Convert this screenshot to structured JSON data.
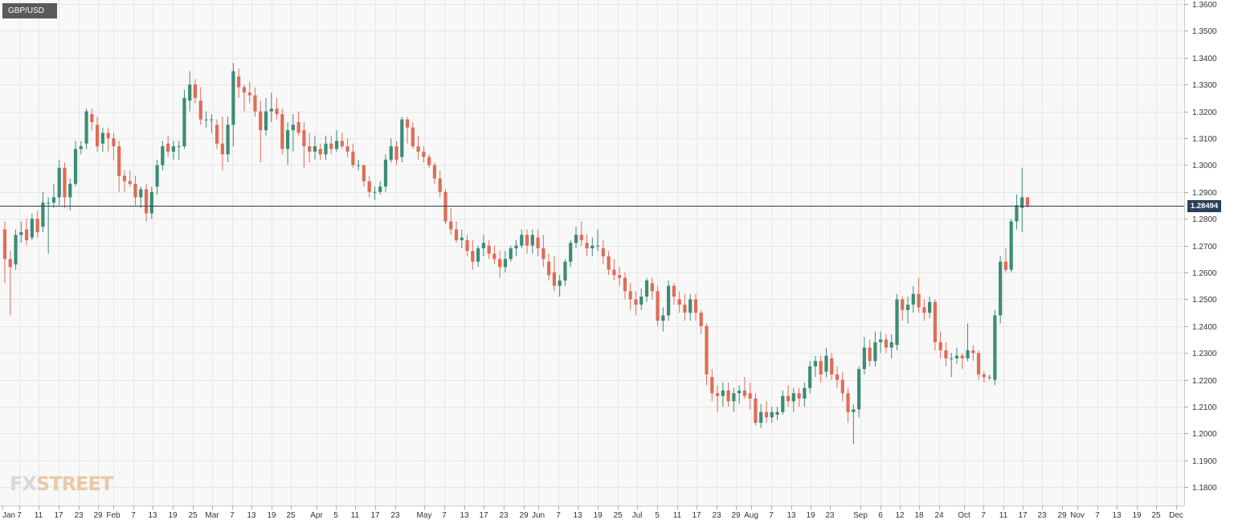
{
  "symbol": "GBP/USD",
  "logo": {
    "part1": "FX",
    "part2": "STREET"
  },
  "last_price_label": "1.28494",
  "colors": {
    "up": "#3b8c77",
    "down": "#e06c56",
    "grid": "#e7e7e7",
    "background": "#f8f8f8",
    "price_line": "#2a3f58"
  },
  "chart_data": {
    "type": "candlestick",
    "title": "GBP/USD",
    "ylim": [
      1.175,
      1.36
    ],
    "y_ticks": [
      "1.1800",
      "1.1900",
      "1.2000",
      "1.2100",
      "1.2200",
      "1.2300",
      "1.2400",
      "1.2500",
      "1.2600",
      "1.2700",
      "1.2800",
      "1.2900",
      "1.3000",
      "1.3100",
      "1.3200",
      "1.3300",
      "1.3400",
      "1.3500",
      "1.3600"
    ],
    "x_tick_labels": [
      "Jan",
      "7",
      "11",
      "17",
      "23",
      "29",
      "Feb",
      "7",
      "13",
      "19",
      "25",
      "Mar",
      "7",
      "13",
      "19",
      "25",
      "Apr",
      "5",
      "11",
      "17",
      "23",
      "May",
      "7",
      "13",
      "17",
      "23",
      "29",
      "Jun",
      "7",
      "13",
      "19",
      "25",
      "Jul",
      "5",
      "11",
      "17",
      "23",
      "29",
      "Aug",
      "7",
      "13",
      "19",
      "23",
      "Sep",
      "6",
      "12",
      "18",
      "24",
      "Oct",
      "7",
      "11",
      "17",
      "23",
      "29",
      "Nov",
      "7",
      "13",
      "19",
      "25",
      "Dec"
    ],
    "last_price": 1.28494,
    "grid": true,
    "ohlc": [
      [
        1.276,
        1.279,
        1.256,
        1.265
      ],
      [
        1.265,
        1.268,
        1.244,
        1.262
      ],
      [
        1.263,
        1.276,
        1.261,
        1.274
      ],
      [
        1.274,
        1.279,
        1.271,
        1.275
      ],
      [
        1.276,
        1.28,
        1.27,
        1.272
      ],
      [
        1.273,
        1.282,
        1.272,
        1.28
      ],
      [
        1.28,
        1.283,
        1.273,
        1.275
      ],
      [
        1.277,
        1.29,
        1.275,
        1.286
      ],
      [
        1.286,
        1.288,
        1.267,
        1.286
      ],
      [
        1.286,
        1.293,
        1.284,
        1.288
      ],
      [
        1.288,
        1.302,
        1.285,
        1.299
      ],
      [
        1.299,
        1.301,
        1.284,
        1.288
      ],
      [
        1.288,
        1.295,
        1.283,
        1.293
      ],
      [
        1.293,
        1.309,
        1.292,
        1.306
      ],
      [
        1.306,
        1.309,
        1.304,
        1.307
      ],
      [
        1.308,
        1.321,
        1.306,
        1.32
      ],
      [
        1.319,
        1.321,
        1.313,
        1.316
      ],
      [
        1.315,
        1.318,
        1.305,
        1.307
      ],
      [
        1.308,
        1.314,
        1.305,
        1.312
      ],
      [
        1.312,
        1.314,
        1.305,
        1.31
      ],
      [
        1.31,
        1.312,
        1.302,
        1.307
      ],
      [
        1.307,
        1.309,
        1.29,
        1.296
      ],
      [
        1.296,
        1.298,
        1.29,
        1.294
      ],
      [
        1.294,
        1.298,
        1.292,
        1.293
      ],
      [
        1.293,
        1.296,
        1.285,
        1.288
      ],
      [
        1.288,
        1.292,
        1.284,
        1.291
      ],
      [
        1.291,
        1.293,
        1.279,
        1.282
      ],
      [
        1.282,
        1.292,
        1.28,
        1.29
      ],
      [
        1.292,
        1.302,
        1.289,
        1.3
      ],
      [
        1.3,
        1.309,
        1.298,
        1.307
      ],
      [
        1.308,
        1.311,
        1.303,
        1.305
      ],
      [
        1.305,
        1.309,
        1.302,
        1.307
      ],
      [
        1.307,
        1.309,
        1.302,
        1.307
      ],
      [
        1.307,
        1.328,
        1.306,
        1.325
      ],
      [
        1.324,
        1.335,
        1.32,
        1.33
      ],
      [
        1.33,
        1.332,
        1.323,
        1.325
      ],
      [
        1.324,
        1.329,
        1.315,
        1.317
      ],
      [
        1.317,
        1.32,
        1.314,
        1.317
      ],
      [
        1.317,
        1.319,
        1.312,
        1.317
      ],
      [
        1.315,
        1.317,
        1.306,
        1.308
      ],
      [
        1.308,
        1.318,
        1.298,
        1.304
      ],
      [
        1.304,
        1.318,
        1.301,
        1.315
      ],
      [
        1.315,
        1.338,
        1.307,
        1.335
      ],
      [
        1.333,
        1.336,
        1.325,
        1.329
      ],
      [
        1.329,
        1.33,
        1.32,
        1.327
      ],
      [
        1.327,
        1.331,
        1.323,
        1.326
      ],
      [
        1.326,
        1.329,
        1.318,
        1.32
      ],
      [
        1.32,
        1.324,
        1.301,
        1.313
      ],
      [
        1.313,
        1.325,
        1.311,
        1.32
      ],
      [
        1.32,
        1.327,
        1.316,
        1.321
      ],
      [
        1.321,
        1.325,
        1.317,
        1.319
      ],
      [
        1.319,
        1.321,
        1.304,
        1.306
      ],
      [
        1.306,
        1.316,
        1.3,
        1.313
      ],
      [
        1.313,
        1.319,
        1.305,
        1.315
      ],
      [
        1.316,
        1.32,
        1.311,
        1.312
      ],
      [
        1.313,
        1.316,
        1.299,
        1.307
      ],
      [
        1.307,
        1.312,
        1.301,
        1.305
      ],
      [
        1.305,
        1.311,
        1.302,
        1.307
      ],
      [
        1.306,
        1.308,
        1.302,
        1.304
      ],
      [
        1.304,
        1.311,
        1.302,
        1.308
      ],
      [
        1.308,
        1.311,
        1.304,
        1.306
      ],
      [
        1.306,
        1.313,
        1.305,
        1.309
      ],
      [
        1.309,
        1.312,
        1.306,
        1.307
      ],
      [
        1.307,
        1.31,
        1.303,
        1.305
      ],
      [
        1.305,
        1.308,
        1.299,
        1.3
      ],
      [
        1.3,
        1.302,
        1.298,
        1.3
      ],
      [
        1.3,
        1.3,
        1.292,
        1.294
      ],
      [
        1.294,
        1.296,
        1.288,
        1.29
      ],
      [
        1.29,
        1.292,
        1.287,
        1.29
      ],
      [
        1.29,
        1.294,
        1.289,
        1.292
      ],
      [
        1.292,
        1.304,
        1.29,
        1.302
      ],
      [
        1.302,
        1.31,
        1.301,
        1.307
      ],
      [
        1.307,
        1.309,
        1.3,
        1.302
      ],
      [
        1.303,
        1.318,
        1.301,
        1.317
      ],
      [
        1.317,
        1.318,
        1.308,
        1.314
      ],
      [
        1.314,
        1.316,
        1.306,
        1.307
      ],
      [
        1.307,
        1.311,
        1.302,
        1.305
      ],
      [
        1.305,
        1.307,
        1.301,
        1.303
      ],
      [
        1.303,
        1.304,
        1.299,
        1.3
      ],
      [
        1.3,
        1.301,
        1.293,
        1.295
      ],
      [
        1.295,
        1.298,
        1.288,
        1.29
      ],
      [
        1.29,
        1.291,
        1.278,
        1.279
      ],
      [
        1.279,
        1.284,
        1.274,
        1.276
      ],
      [
        1.276,
        1.279,
        1.271,
        1.272
      ],
      [
        1.272,
        1.276,
        1.269,
        1.273
      ],
      [
        1.272,
        1.274,
        1.266,
        1.268
      ],
      [
        1.268,
        1.272,
        1.261,
        1.264
      ],
      [
        1.264,
        1.27,
        1.262,
        1.269
      ],
      [
        1.269,
        1.274,
        1.266,
        1.271
      ],
      [
        1.27,
        1.272,
        1.265,
        1.267
      ],
      [
        1.267,
        1.27,
        1.263,
        1.265
      ],
      [
        1.265,
        1.268,
        1.258,
        1.262
      ],
      [
        1.262,
        1.268,
        1.26,
        1.265
      ],
      [
        1.265,
        1.27,
        1.264,
        1.269
      ],
      [
        1.269,
        1.272,
        1.266,
        1.27
      ],
      [
        1.27,
        1.276,
        1.269,
        1.274
      ],
      [
        1.274,
        1.276,
        1.267,
        1.27
      ],
      [
        1.27,
        1.276,
        1.267,
        1.274
      ],
      [
        1.273,
        1.276,
        1.266,
        1.269
      ],
      [
        1.269,
        1.274,
        1.262,
        1.265
      ],
      [
        1.264,
        1.267,
        1.257,
        1.259
      ],
      [
        1.26,
        1.266,
        1.253,
        1.255
      ],
      [
        1.255,
        1.259,
        1.251,
        1.257
      ],
      [
        1.257,
        1.265,
        1.255,
        1.264
      ],
      [
        1.264,
        1.272,
        1.262,
        1.271
      ],
      [
        1.271,
        1.277,
        1.269,
        1.274
      ],
      [
        1.274,
        1.279,
        1.27,
        1.272
      ],
      [
        1.271,
        1.274,
        1.266,
        1.269
      ],
      [
        1.269,
        1.273,
        1.266,
        1.27
      ],
      [
        1.27,
        1.276,
        1.268,
        1.27
      ],
      [
        1.269,
        1.272,
        1.263,
        1.266
      ],
      [
        1.266,
        1.268,
        1.259,
        1.261
      ],
      [
        1.261,
        1.265,
        1.257,
        1.259
      ],
      [
        1.259,
        1.262,
        1.255,
        1.258
      ],
      [
        1.258,
        1.26,
        1.25,
        1.253
      ],
      [
        1.253,
        1.256,
        1.246,
        1.25
      ],
      [
        1.25,
        1.253,
        1.244,
        1.248
      ],
      [
        1.248,
        1.254,
        1.246,
        1.251
      ],
      [
        1.251,
        1.258,
        1.249,
        1.257
      ],
      [
        1.256,
        1.258,
        1.25,
        1.253
      ],
      [
        1.253,
        1.255,
        1.24,
        1.242
      ],
      [
        1.242,
        1.247,
        1.238,
        1.244
      ],
      [
        1.244,
        1.257,
        1.242,
        1.255
      ],
      [
        1.255,
        1.256,
        1.248,
        1.251
      ],
      [
        1.25,
        1.253,
        1.245,
        1.248
      ],
      [
        1.248,
        1.252,
        1.242,
        1.245
      ],
      [
        1.245,
        1.252,
        1.242,
        1.25
      ],
      [
        1.25,
        1.252,
        1.242,
        1.245
      ],
      [
        1.245,
        1.246,
        1.237,
        1.24
      ],
      [
        1.24,
        1.241,
        1.218,
        1.222
      ],
      [
        1.221,
        1.224,
        1.212,
        1.215
      ],
      [
        1.215,
        1.218,
        1.208,
        1.214
      ],
      [
        1.214,
        1.219,
        1.21,
        1.216
      ],
      [
        1.216,
        1.219,
        1.21,
        1.212
      ],
      [
        1.212,
        1.217,
        1.208,
        1.215
      ],
      [
        1.215,
        1.218,
        1.211,
        1.216
      ],
      [
        1.216,
        1.221,
        1.213,
        1.214
      ],
      [
        1.215,
        1.219,
        1.209,
        1.213
      ],
      [
        1.213,
        1.215,
        1.203,
        1.204
      ],
      [
        1.204,
        1.211,
        1.202,
        1.208
      ],
      [
        1.208,
        1.212,
        1.204,
        1.206
      ],
      [
        1.206,
        1.21,
        1.204,
        1.208
      ],
      [
        1.207,
        1.21,
        1.205,
        1.208
      ],
      [
        1.208,
        1.216,
        1.207,
        1.214
      ],
      [
        1.214,
        1.218,
        1.21,
        1.212
      ],
      [
        1.212,
        1.217,
        1.208,
        1.215
      ],
      [
        1.215,
        1.217,
        1.21,
        1.213
      ],
      [
        1.213,
        1.219,
        1.21,
        1.217
      ],
      [
        1.217,
        1.227,
        1.215,
        1.225
      ],
      [
        1.225,
        1.229,
        1.221,
        1.227
      ],
      [
        1.227,
        1.229,
        1.219,
        1.222
      ],
      [
        1.223,
        1.232,
        1.221,
        1.229
      ],
      [
        1.228,
        1.23,
        1.22,
        1.222
      ],
      [
        1.222,
        1.225,
        1.217,
        1.22
      ],
      [
        1.22,
        1.223,
        1.212,
        1.215
      ],
      [
        1.215,
        1.217,
        1.204,
        1.208
      ],
      [
        1.208,
        1.211,
        1.196,
        1.209
      ],
      [
        1.209,
        1.225,
        1.206,
        1.224
      ],
      [
        1.224,
        1.236,
        1.222,
        1.232
      ],
      [
        1.232,
        1.235,
        1.225,
        1.227
      ],
      [
        1.227,
        1.238,
        1.225,
        1.234
      ],
      [
        1.234,
        1.238,
        1.23,
        1.235
      ],
      [
        1.235,
        1.237,
        1.23,
        1.232
      ],
      [
        1.232,
        1.237,
        1.228,
        1.234
      ],
      [
        1.233,
        1.252,
        1.231,
        1.25
      ],
      [
        1.25,
        1.251,
        1.242,
        1.246
      ],
      [
        1.246,
        1.251,
        1.241,
        1.248
      ],
      [
        1.248,
        1.255,
        1.245,
        1.252
      ],
      [
        1.252,
        1.258,
        1.245,
        1.247
      ],
      [
        1.247,
        1.25,
        1.242,
        1.245
      ],
      [
        1.245,
        1.251,
        1.243,
        1.249
      ],
      [
        1.249,
        1.25,
        1.231,
        1.234
      ],
      [
        1.234,
        1.238,
        1.228,
        1.231
      ],
      [
        1.231,
        1.234,
        1.225,
        1.228
      ],
      [
        1.228,
        1.23,
        1.221,
        1.228
      ],
      [
        1.228,
        1.232,
        1.226,
        1.229
      ],
      [
        1.229,
        1.23,
        1.224,
        1.228
      ],
      [
        1.228,
        1.241,
        1.227,
        1.231
      ],
      [
        1.231,
        1.233,
        1.227,
        1.23
      ],
      [
        1.23,
        1.231,
        1.22,
        1.222
      ],
      [
        1.222,
        1.223,
        1.219,
        1.221
      ],
      [
        1.221,
        1.222,
        1.22,
        1.221
      ],
      [
        1.22,
        1.246,
        1.218,
        1.244
      ],
      [
        1.244,
        1.266,
        1.241,
        1.264
      ],
      [
        1.264,
        1.269,
        1.26,
        1.261
      ],
      [
        1.261,
        1.28,
        1.26,
        1.279
      ],
      [
        1.279,
        1.289,
        1.276,
        1.285
      ],
      [
        1.284,
        1.299,
        1.275,
        1.288
      ],
      [
        1.288,
        1.288,
        1.284,
        1.2849
      ]
    ]
  }
}
